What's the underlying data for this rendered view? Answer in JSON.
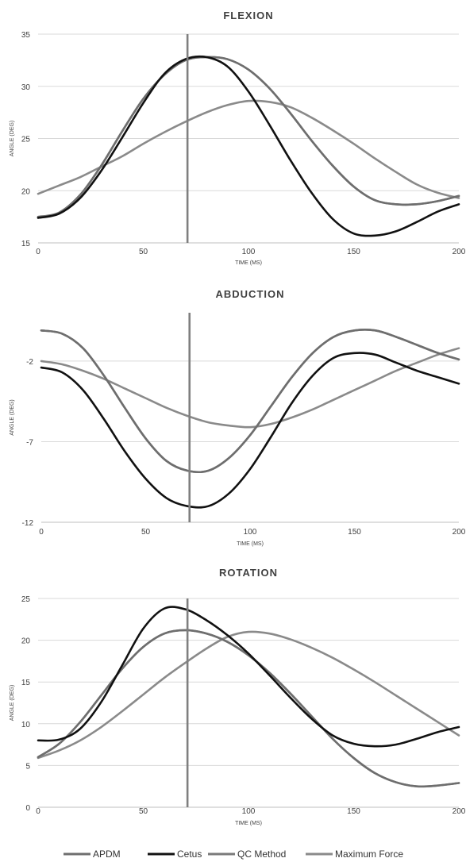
{
  "chart_data": [
    {
      "type": "line",
      "title": "FLEXION",
      "xlabel": "TIME (MS)",
      "ylabel": "ANGLE (DEG)",
      "xlim": [
        0,
        200
      ],
      "ylim": [
        15,
        35
      ],
      "xticks": [
        "0",
        "50",
        "100",
        "150",
        "200"
      ],
      "yticks": [
        "15",
        "20",
        "25",
        "30",
        "35"
      ],
      "grid": true,
      "marker_x": 71,
      "series": [
        {
          "name": "APDM",
          "color": "#6e6e6e",
          "width": 2.6,
          "x": [
            0,
            10,
            20,
            30,
            40,
            50,
            60,
            70,
            80,
            90,
            100,
            110,
            120,
            130,
            140,
            150,
            160,
            170,
            180,
            190,
            200
          ],
          "y": [
            17.5,
            17.9,
            19.6,
            22.4,
            25.7,
            28.8,
            31.1,
            32.5,
            32.8,
            32.6,
            31.6,
            29.8,
            27.4,
            24.8,
            22.4,
            20.4,
            19.1,
            18.7,
            18.7,
            19.0,
            19.5
          ]
        },
        {
          "name": "Cetus",
          "color": "#111111",
          "width": 2.6,
          "x": [
            0,
            10,
            20,
            30,
            40,
            50,
            60,
            70,
            80,
            90,
            100,
            110,
            120,
            130,
            140,
            150,
            160,
            170,
            180,
            190,
            200
          ],
          "y": [
            17.4,
            17.8,
            19.3,
            21.9,
            25.1,
            28.4,
            31.2,
            32.6,
            32.8,
            31.9,
            29.5,
            26.3,
            22.9,
            19.8,
            17.3,
            15.9,
            15.7,
            16.1,
            17.0,
            18.0,
            18.7
          ]
        },
        {
          "name": "QC Method",
          "color": "#7a7a7a",
          "width": 2.6,
          "x": [
            0,
            10,
            20,
            30,
            40,
            50,
            60,
            70,
            80,
            90,
            100,
            110,
            120,
            130,
            140,
            150,
            160,
            170,
            180,
            190,
            200
          ],
          "y": [
            17.4,
            17.9,
            19.6,
            22.4,
            25.7,
            28.8,
            31.1,
            32.5,
            32.8,
            32.6,
            31.6,
            29.8,
            27.4,
            24.8,
            22.4,
            20.4,
            19.1,
            18.7,
            18.7,
            19.0,
            19.5
          ]
        },
        {
          "name": "Maximum Force",
          "color": "#8a8a8a",
          "width": 2.6,
          "x": [
            0,
            10,
            20,
            30,
            40,
            50,
            60,
            70,
            80,
            90,
            100,
            110,
            120,
            130,
            140,
            150,
            160,
            170,
            180,
            190,
            200
          ],
          "y": [
            19.7,
            20.5,
            21.3,
            22.3,
            23.3,
            24.5,
            25.6,
            26.6,
            27.5,
            28.2,
            28.6,
            28.5,
            28.0,
            27.0,
            25.8,
            24.5,
            23.1,
            21.8,
            20.6,
            19.8,
            19.3
          ]
        }
      ]
    },
    {
      "type": "line",
      "title": "ABDUCTION",
      "xlabel": "TIME (MS)",
      "ylabel": "ANGLE (DEG)",
      "xlim": [
        0,
        200
      ],
      "ylim": [
        -12,
        1
      ],
      "xticks": [
        "0",
        "50",
        "100",
        "150",
        "200"
      ],
      "yticks": [
        "-12",
        "-7",
        "-2"
      ],
      "ytick_values": [
        -12,
        -7,
        -2
      ],
      "grid": true,
      "marker_x": 71,
      "series": [
        {
          "name": "APDM",
          "color": "#6e6e6e",
          "width": 2.6,
          "x": [
            0,
            10,
            20,
            30,
            40,
            50,
            60,
            70,
            80,
            90,
            100,
            110,
            120,
            130,
            140,
            150,
            160,
            170,
            180,
            190,
            200
          ],
          "y": [
            -0.1,
            -0.3,
            -1.2,
            -2.9,
            -4.9,
            -6.8,
            -8.2,
            -8.8,
            -8.8,
            -8.0,
            -6.6,
            -4.8,
            -3.0,
            -1.5,
            -0.5,
            -0.1,
            -0.1,
            -0.5,
            -1.0,
            -1.5,
            -1.9
          ]
        },
        {
          "name": "Cetus",
          "color": "#111111",
          "width": 2.6,
          "x": [
            0,
            10,
            20,
            30,
            40,
            50,
            60,
            70,
            80,
            90,
            100,
            110,
            120,
            130,
            140,
            150,
            160,
            170,
            180,
            190,
            200
          ],
          "y": [
            -2.4,
            -2.7,
            -3.8,
            -5.6,
            -7.6,
            -9.3,
            -10.5,
            -11.0,
            -11.0,
            -10.2,
            -8.7,
            -6.7,
            -4.6,
            -2.9,
            -1.8,
            -1.5,
            -1.6,
            -2.1,
            -2.6,
            -3.0,
            -3.4
          ]
        },
        {
          "name": "QC Method",
          "color": "#7a7a7a",
          "width": 2.6,
          "x": [
            0,
            10,
            20,
            30,
            40,
            50,
            60,
            70,
            80,
            90,
            100,
            110,
            120,
            130,
            140,
            150,
            160,
            170,
            180,
            190,
            200
          ],
          "y": [
            -0.1,
            -0.3,
            -1.2,
            -2.9,
            -4.9,
            -6.8,
            -8.2,
            -8.8,
            -8.8,
            -8.0,
            -6.6,
            -4.8,
            -3.0,
            -1.5,
            -0.5,
            -0.1,
            -0.1,
            -0.5,
            -1.0,
            -1.5,
            -1.9
          ]
        },
        {
          "name": "Maximum Force",
          "color": "#8a8a8a",
          "width": 2.6,
          "x": [
            0,
            10,
            20,
            30,
            40,
            50,
            60,
            70,
            80,
            90,
            100,
            110,
            120,
            130,
            140,
            150,
            160,
            170,
            180,
            190,
            200
          ],
          "y": [
            -2.0,
            -2.2,
            -2.6,
            -3.1,
            -3.7,
            -4.3,
            -4.9,
            -5.4,
            -5.8,
            -6.0,
            -6.1,
            -5.9,
            -5.5,
            -5.0,
            -4.4,
            -3.8,
            -3.2,
            -2.6,
            -2.1,
            -1.6,
            -1.2
          ]
        }
      ]
    },
    {
      "type": "line",
      "title": "ROTATION",
      "xlabel": "TIME (MS)",
      "ylabel": "ANGLE (DEG)",
      "xlim": [
        0,
        200
      ],
      "ylim": [
        0,
        25
      ],
      "xticks": [
        "0",
        "50",
        "100",
        "150",
        "200"
      ],
      "yticks": [
        "0",
        "5",
        "10",
        "15",
        "20",
        "25"
      ],
      "grid": true,
      "marker_x": 71,
      "series": [
        {
          "name": "APDM",
          "color": "#6e6e6e",
          "width": 2.6,
          "x": [
            0,
            10,
            20,
            30,
            40,
            50,
            60,
            70,
            80,
            90,
            100,
            110,
            120,
            130,
            140,
            150,
            160,
            170,
            180,
            190,
            200
          ],
          "y": [
            6.0,
            7.6,
            10.2,
            13.4,
            16.6,
            19.2,
            20.8,
            21.2,
            20.8,
            19.8,
            18.2,
            16.1,
            13.6,
            10.9,
            8.2,
            5.9,
            4.1,
            3.0,
            2.5,
            2.6,
            2.9
          ]
        },
        {
          "name": "Cetus",
          "color": "#111111",
          "width": 2.6,
          "x": [
            0,
            10,
            20,
            30,
            40,
            50,
            60,
            70,
            80,
            90,
            100,
            110,
            120,
            130,
            140,
            150,
            160,
            170,
            180,
            190,
            200
          ],
          "y": [
            8.0,
            8.1,
            9.4,
            12.6,
            17.0,
            21.4,
            23.8,
            23.7,
            22.4,
            20.6,
            18.4,
            15.8,
            13.1,
            10.6,
            8.6,
            7.6,
            7.3,
            7.5,
            8.2,
            9.0,
            9.6
          ]
        },
        {
          "name": "QC Method",
          "color": "#7a7a7a",
          "width": 2.6,
          "x": [
            0,
            10,
            20,
            30,
            40,
            50,
            60,
            70,
            80,
            90,
            100,
            110,
            120,
            130,
            140,
            150,
            160,
            170,
            180,
            190,
            200
          ],
          "y": [
            6.0,
            7.6,
            10.2,
            13.4,
            16.6,
            19.2,
            20.8,
            21.2,
            20.8,
            19.8,
            18.2,
            16.1,
            13.6,
            10.9,
            8.2,
            5.9,
            4.1,
            3.0,
            2.5,
            2.6,
            2.9
          ]
        },
        {
          "name": "Maximum Force",
          "color": "#8a8a8a",
          "width": 2.6,
          "x": [
            0,
            10,
            20,
            30,
            40,
            50,
            60,
            70,
            80,
            90,
            100,
            110,
            120,
            130,
            140,
            150,
            160,
            170,
            180,
            190,
            200
          ],
          "y": [
            5.9,
            6.8,
            8.0,
            9.6,
            11.5,
            13.5,
            15.5,
            17.3,
            19.0,
            20.4,
            21.0,
            20.8,
            20.1,
            19.1,
            17.9,
            16.5,
            15.0,
            13.4,
            11.8,
            10.2,
            8.6
          ]
        }
      ]
    }
  ],
  "legend": {
    "placement": "bottom-center",
    "items": [
      {
        "label": "APDM",
        "color": "#6e6e6e"
      },
      {
        "label": "Cetus",
        "color": "#111111"
      },
      {
        "label": "QC Method",
        "color": "#7a7a7a"
      },
      {
        "label": "Maximum Force",
        "color": "#8a8a8a"
      }
    ]
  },
  "colors": {
    "grid": "#d9d9d9",
    "marker_line": "#7f7f7f",
    "text": "#404040"
  }
}
